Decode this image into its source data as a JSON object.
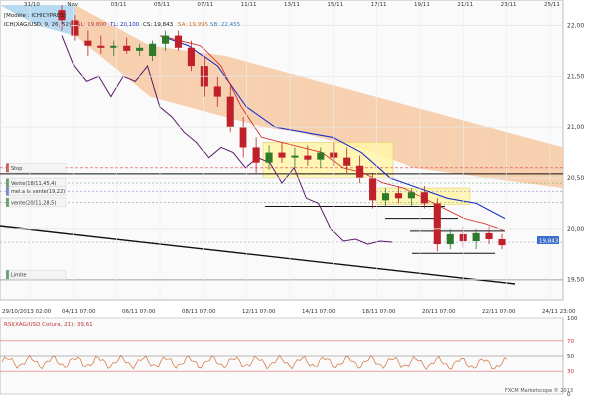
{
  "chart_data": [
    {
      "type": "candlestick",
      "header": {
        "title": "[Modèle : ICHICYPRE1]",
        "instrument": "ICH(XAG/USD, 9, 26, 52)",
        "sl": "SL: 19,800",
        "tl": "TL: 20,100",
        "cs": "CS: 19,843",
        "sa": "SA: 19,995",
        "sb": "SB: 22,455"
      },
      "y_axis": {
        "ticks": [
          "22,00",
          "21,50",
          "21,00",
          "20,50",
          "20,00",
          "19,50"
        ],
        "tick_values": [
          22.0,
          21.5,
          21.0,
          20.5,
          20.0,
          19.5
        ],
        "range": [
          19.3,
          22.25
        ],
        "price_badge": "19,843"
      },
      "top_date_labels": [
        "31/10",
        "Nov",
        "03/11",
        "05/11",
        "07/11",
        "11/11",
        "13/11",
        "15/11",
        "17/11",
        "19/11",
        "21/11",
        "23/11",
        "25/11"
      ],
      "bottom_date_labels": [
        "29/10/2013 02:00",
        "04/11 07:00",
        "06/11 07:00",
        "08/11 07:00",
        "12/11 07:00",
        "14/11 07:00",
        "18/11 07:00",
        "20/11 07:00",
        "22/11 07:00",
        "24/11 23:00"
      ],
      "level_labels": [
        {
          "text": "Stop",
          "value": 20.6
        },
        {
          "text": "Vente(18/11,45,4)",
          "value": 20.45
        },
        {
          "text": "mel.a la vente(19,22)",
          "value": 20.37
        },
        {
          "text": "vente(20/11,28,5)",
          "value": 20.26
        },
        {
          "text": "Limite",
          "value": 19.55
        }
      ],
      "candles": [
        {
          "o": 22.15,
          "h": 22.2,
          "l": 21.95,
          "c": 22.05
        },
        {
          "o": 22.05,
          "h": 22.1,
          "l": 21.85,
          "c": 21.9
        },
        {
          "o": 21.85,
          "h": 21.95,
          "l": 21.7,
          "c": 21.8
        },
        {
          "o": 21.8,
          "h": 21.9,
          "l": 21.72,
          "c": 21.78
        },
        {
          "o": 21.78,
          "h": 21.85,
          "l": 21.7,
          "c": 21.8
        },
        {
          "o": 21.8,
          "h": 21.88,
          "l": 21.72,
          "c": 21.75
        },
        {
          "o": 21.75,
          "h": 21.82,
          "l": 21.7,
          "c": 21.78
        },
        {
          "o": 21.7,
          "h": 21.85,
          "l": 21.65,
          "c": 21.82
        },
        {
          "o": 21.82,
          "h": 21.95,
          "l": 21.75,
          "c": 21.9
        },
        {
          "o": 21.9,
          "h": 21.95,
          "l": 21.75,
          "c": 21.78
        },
        {
          "o": 21.78,
          "h": 21.85,
          "l": 21.55,
          "c": 21.6
        },
        {
          "o": 21.6,
          "h": 21.7,
          "l": 21.3,
          "c": 21.4
        },
        {
          "o": 21.4,
          "h": 21.5,
          "l": 21.2,
          "c": 21.3
        },
        {
          "o": 21.3,
          "h": 21.4,
          "l": 20.95,
          "c": 21.0
        },
        {
          "o": 21.0,
          "h": 21.1,
          "l": 20.7,
          "c": 20.8
        },
        {
          "o": 20.8,
          "h": 20.9,
          "l": 20.55,
          "c": 20.65
        },
        {
          "o": 20.65,
          "h": 20.82,
          "l": 20.58,
          "c": 20.75
        },
        {
          "o": 20.75,
          "h": 20.85,
          "l": 20.65,
          "c": 20.7
        },
        {
          "o": 20.7,
          "h": 20.8,
          "l": 20.6,
          "c": 20.72
        },
        {
          "o": 20.72,
          "h": 20.82,
          "l": 20.62,
          "c": 20.68
        },
        {
          "o": 20.68,
          "h": 20.8,
          "l": 20.6,
          "c": 20.75
        },
        {
          "o": 20.75,
          "h": 20.85,
          "l": 20.62,
          "c": 20.7
        },
        {
          "o": 20.7,
          "h": 20.8,
          "l": 20.55,
          "c": 20.62
        },
        {
          "o": 20.62,
          "h": 20.72,
          "l": 20.45,
          "c": 20.5
        },
        {
          "o": 20.5,
          "h": 20.55,
          "l": 20.2,
          "c": 20.28
        },
        {
          "o": 20.28,
          "h": 20.4,
          "l": 20.22,
          "c": 20.35
        },
        {
          "o": 20.35,
          "h": 20.42,
          "l": 20.25,
          "c": 20.3
        },
        {
          "o": 20.3,
          "h": 20.4,
          "l": 20.22,
          "c": 20.36
        },
        {
          "o": 20.36,
          "h": 20.42,
          "l": 20.2,
          "c": 20.25
        },
        {
          "o": 20.25,
          "h": 20.3,
          "l": 19.78,
          "c": 19.85
        },
        {
          "o": 19.85,
          "h": 20.0,
          "l": 19.8,
          "c": 19.95
        },
        {
          "o": 19.95,
          "h": 20.02,
          "l": 19.82,
          "c": 19.88
        },
        {
          "o": 19.88,
          "h": 20.0,
          "l": 19.8,
          "c": 19.96
        },
        {
          "o": 19.96,
          "h": 20.02,
          "l": 19.85,
          "c": 19.9
        },
        {
          "o": 19.9,
          "h": 19.95,
          "l": 19.8,
          "c": 19.84
        }
      ],
      "cloud": {
        "upper": [
          22.2,
          22.2,
          22.2,
          22.0,
          21.8,
          21.75,
          21.7,
          21.6,
          21.5,
          21.4,
          21.3,
          21.2,
          21.1,
          21.0,
          20.9,
          20.8
        ],
        "lower": [
          22.2,
          22.0,
          21.9,
          21.6,
          21.3,
          21.2,
          21.1,
          21.0,
          20.95,
          20.85,
          20.75,
          20.6,
          20.55,
          20.5,
          20.45,
          20.4
        ]
      },
      "chikou": [
        21.9,
        21.6,
        21.45,
        21.5,
        21.3,
        21.5,
        21.45,
        21.6,
        21.2,
        21.1,
        20.95,
        20.85,
        20.7,
        20.8,
        20.75,
        20.6,
        20.7,
        20.65,
        20.45,
        20.6,
        20.3,
        20.25,
        20.0,
        19.88,
        19.9,
        19.85,
        19.88,
        19.87
      ],
      "tenkan": [
        21.9,
        21.85,
        21.8,
        21.6,
        21.2,
        20.9,
        20.85,
        20.8,
        20.75,
        20.6,
        20.55,
        20.45,
        20.4,
        20.3,
        20.2,
        20.1,
        20.05,
        19.98
      ],
      "kijun": [
        21.9,
        21.8,
        21.6,
        21.2,
        21.0,
        20.95,
        20.9,
        20.75,
        20.5,
        20.4,
        20.3,
        20.25,
        20.1
      ],
      "horizontal_levels": [
        20.6,
        20.54,
        20.45,
        20.37,
        20.26,
        20.22,
        20.1,
        19.98,
        19.96,
        19.87,
        19.76,
        19.5
      ],
      "indicator": {
        "label": "RSI(XAG/USD Cotura, 21): 39,61",
        "ticks": [
          "100",
          "70",
          "50",
          "30",
          "0"
        ],
        "tick_values": [
          100,
          70,
          50,
          30,
          0
        ],
        "value": 39.61
      },
      "footer": "FXCM Marketscope © 2013"
    }
  ],
  "colors": {
    "candle_up": "#2f7a2a",
    "candle_down": "#c0202a",
    "cloud_bullish": "#a9d4ee",
    "cloud_bearish": "#f6c8a2",
    "tenkan": "#d02020",
    "kijun": "#1f2fc8",
    "chikou": "#5a1a6a",
    "zone": "#fff4a8",
    "badge": "#3b6fc8"
  }
}
